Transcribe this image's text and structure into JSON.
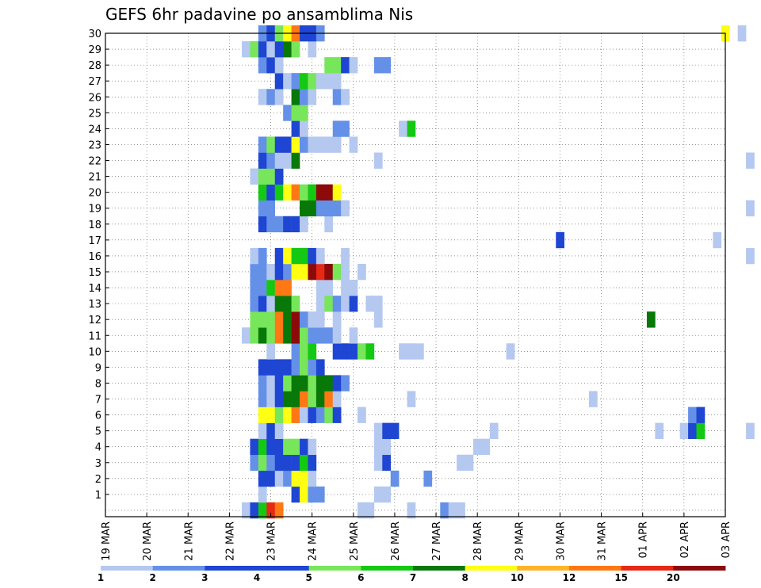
{
  "chart_data": {
    "type": "heatmap",
    "title": "GEFS 6hr padavine po ansamblima Nis",
    "y_ticks": [
      "1",
      "2",
      "3",
      "4",
      "5",
      "6",
      "7",
      "8",
      "9",
      "10",
      "11",
      "12",
      "13",
      "14",
      "15",
      "16",
      "17",
      "18",
      "19",
      "20",
      "21",
      "22",
      "23",
      "24",
      "25",
      "26",
      "27",
      "28",
      "29",
      "30"
    ],
    "x_ticks": [
      "19 MAR",
      "20 MAR",
      "21 MAR",
      "22 MAR",
      "23 MAR",
      "24 MAR",
      "25 MAR",
      "26 MAR",
      "27 MAR",
      "28 MAR",
      "29 MAR",
      "30 MAR",
      "31 MAR",
      "01 APR",
      "02 APR",
      "03 APR"
    ],
    "legend_labels": [
      "1",
      "2",
      "3",
      "4",
      "5",
      "6",
      "7",
      "8",
      "10",
      "12",
      "15",
      "20"
    ],
    "legend_colors": [
      "#b4c8f0",
      "#6490e8",
      "#1e46d2",
      "#1e46d2",
      "#78e65a",
      "#14c814",
      "#087808",
      "#ffff14",
      "#ffb428",
      "#ff7814",
      "#e62814",
      "#8c0a0a"
    ],
    "cells": [
      [
        0,
        3.4,
        1
      ],
      [
        0,
        3.6,
        3
      ],
      [
        0,
        3.8,
        6
      ],
      [
        0,
        4.0,
        11
      ],
      [
        0,
        4.2,
        10
      ],
      [
        0,
        6.2,
        1
      ],
      [
        0,
        6.4,
        1
      ],
      [
        0,
        7.4,
        1
      ],
      [
        0,
        8.2,
        2
      ],
      [
        0,
        8.4,
        1
      ],
      [
        0,
        8.6,
        1
      ],
      [
        1,
        3.8,
        1
      ],
      [
        1,
        4.6,
        3
      ],
      [
        1,
        4.8,
        8
      ],
      [
        1,
        5.0,
        2
      ],
      [
        1,
        5.2,
        2
      ],
      [
        1,
        6.6,
        1
      ],
      [
        1,
        6.8,
        1
      ],
      [
        2,
        3.8,
        3
      ],
      [
        2,
        4.0,
        3
      ],
      [
        2,
        4.2,
        1
      ],
      [
        2,
        4.4,
        2
      ],
      [
        2,
        4.6,
        8
      ],
      [
        2,
        4.8,
        8
      ],
      [
        2,
        5.0,
        1
      ],
      [
        2,
        7.0,
        2
      ],
      [
        2,
        7.8,
        2
      ],
      [
        3,
        3.6,
        2
      ],
      [
        3,
        3.8,
        5
      ],
      [
        3,
        4.0,
        2
      ],
      [
        3,
        4.2,
        3
      ],
      [
        3,
        4.4,
        3
      ],
      [
        3,
        4.6,
        3
      ],
      [
        3,
        4.8,
        6
      ],
      [
        3,
        5.0,
        3
      ],
      [
        3,
        6.6,
        1
      ],
      [
        3,
        6.8,
        3
      ],
      [
        3,
        8.6,
        1
      ],
      [
        3,
        8.8,
        1
      ],
      [
        4,
        3.6,
        3
      ],
      [
        4,
        3.8,
        6
      ],
      [
        4,
        4.0,
        3
      ],
      [
        4,
        4.2,
        3
      ],
      [
        4,
        4.4,
        5
      ],
      [
        4,
        4.6,
        5
      ],
      [
        4,
        4.8,
        3
      ],
      [
        4,
        5.0,
        1
      ],
      [
        4,
        6.6,
        1
      ],
      [
        4,
        6.8,
        1
      ],
      [
        4,
        9.0,
        1
      ],
      [
        4,
        9.2,
        1
      ],
      [
        5,
        3.8,
        1
      ],
      [
        5,
        4.0,
        3
      ],
      [
        5,
        4.2,
        1
      ],
      [
        5,
        6.6,
        1
      ],
      [
        5,
        6.8,
        3
      ],
      [
        5,
        7.0,
        3
      ],
      [
        5,
        9.4,
        1
      ],
      [
        5,
        13.4,
        1
      ],
      [
        5,
        14.0,
        1
      ],
      [
        5,
        14.2,
        3
      ],
      [
        5,
        14.4,
        6
      ],
      [
        5,
        15.6,
        1
      ],
      [
        5,
        16.6,
        8
      ],
      [
        6,
        3.8,
        8
      ],
      [
        6,
        4.0,
        8
      ],
      [
        6,
        4.2,
        5
      ],
      [
        6,
        4.4,
        8
      ],
      [
        6,
        4.6,
        10
      ],
      [
        6,
        4.8,
        1
      ],
      [
        6,
        5.0,
        3
      ],
      [
        6,
        5.2,
        2
      ],
      [
        6,
        5.4,
        5
      ],
      [
        6,
        5.6,
        3
      ],
      [
        6,
        6.2,
        1
      ],
      [
        6,
        14.2,
        2
      ],
      [
        6,
        14.4,
        3
      ],
      [
        7,
        3.8,
        2
      ],
      [
        7,
        4.0,
        1
      ],
      [
        7,
        4.2,
        3
      ],
      [
        7,
        4.4,
        7
      ],
      [
        7,
        4.6,
        7
      ],
      [
        7,
        4.8,
        10
      ],
      [
        7,
        5.0,
        5
      ],
      [
        7,
        5.2,
        7
      ],
      [
        7,
        5.4,
        10
      ],
      [
        7,
        5.6,
        1
      ],
      [
        7,
        7.4,
        1
      ],
      [
        7,
        11.8,
        1
      ],
      [
        7,
        18.4,
        6
      ],
      [
        8,
        3.8,
        2
      ],
      [
        8,
        4.0,
        1
      ],
      [
        8,
        4.2,
        3
      ],
      [
        8,
        4.4,
        5
      ],
      [
        8,
        4.6,
        7
      ],
      [
        8,
        4.8,
        7
      ],
      [
        8,
        5.0,
        5
      ],
      [
        8,
        5.2,
        7
      ],
      [
        8,
        5.4,
        7
      ],
      [
        8,
        5.6,
        3
      ],
      [
        8,
        5.8,
        2
      ],
      [
        8,
        18.0,
        5
      ],
      [
        8,
        18.2,
        7
      ],
      [
        8,
        18.6,
        3
      ],
      [
        8,
        19.6,
        1
      ],
      [
        9,
        3.8,
        3
      ],
      [
        9,
        4.0,
        3
      ],
      [
        9,
        4.2,
        3
      ],
      [
        9,
        4.4,
        3
      ],
      [
        9,
        4.6,
        2
      ],
      [
        9,
        4.8,
        5
      ],
      [
        9,
        5.0,
        2
      ],
      [
        9,
        5.2,
        3
      ],
      [
        10,
        4.0,
        1
      ],
      [
        10,
        4.6,
        2
      ],
      [
        10,
        4.8,
        5
      ],
      [
        10,
        5.0,
        6
      ],
      [
        10,
        5.6,
        3
      ],
      [
        10,
        5.8,
        3
      ],
      [
        10,
        6.0,
        3
      ],
      [
        10,
        6.2,
        5
      ],
      [
        10,
        6.4,
        6
      ],
      [
        10,
        7.2,
        1
      ],
      [
        10,
        7.4,
        1
      ],
      [
        10,
        7.6,
        1
      ],
      [
        10,
        9.8,
        1
      ],
      [
        11,
        3.4,
        1
      ],
      [
        11,
        3.6,
        5
      ],
      [
        11,
        3.8,
        7
      ],
      [
        11,
        4.0,
        5
      ],
      [
        11,
        4.2,
        10
      ],
      [
        11,
        4.4,
        7
      ],
      [
        11,
        4.6,
        13
      ],
      [
        11,
        4.8,
        5
      ],
      [
        11,
        5.0,
        2
      ],
      [
        11,
        5.2,
        2
      ],
      [
        11,
        5.4,
        2
      ],
      [
        11,
        5.6,
        1
      ],
      [
        11,
        6.0,
        1
      ],
      [
        11,
        17.6,
        1
      ],
      [
        11,
        19.4,
        3
      ],
      [
        12,
        3.6,
        5
      ],
      [
        12,
        3.8,
        5
      ],
      [
        12,
        4.0,
        5
      ],
      [
        12,
        4.2,
        10
      ],
      [
        12,
        4.4,
        7
      ],
      [
        12,
        4.6,
        13
      ],
      [
        12,
        4.8,
        2
      ],
      [
        12,
        5.0,
        1
      ],
      [
        12,
        5.2,
        1
      ],
      [
        12,
        5.6,
        1
      ],
      [
        12,
        6.6,
        1
      ],
      [
        12,
        13.2,
        7
      ],
      [
        13,
        3.6,
        2
      ],
      [
        13,
        3.8,
        3
      ],
      [
        13,
        4.0,
        1
      ],
      [
        13,
        4.2,
        7
      ],
      [
        13,
        4.4,
        7
      ],
      [
        13,
        4.6,
        5
      ],
      [
        13,
        5.2,
        1
      ],
      [
        13,
        5.4,
        5
      ],
      [
        13,
        5.6,
        2
      ],
      [
        13,
        5.8,
        1
      ],
      [
        13,
        6.0,
        3
      ],
      [
        13,
        6.4,
        1
      ],
      [
        13,
        6.6,
        1
      ],
      [
        13,
        19.4,
        1
      ],
      [
        13,
        19.6,
        2
      ],
      [
        14,
        3.6,
        2
      ],
      [
        14,
        3.8,
        2
      ],
      [
        14,
        4.0,
        6
      ],
      [
        14,
        4.2,
        10
      ],
      [
        14,
        4.4,
        10
      ],
      [
        14,
        5.2,
        1
      ],
      [
        14,
        5.4,
        1
      ],
      [
        14,
        5.8,
        1
      ],
      [
        14,
        6.0,
        1
      ],
      [
        15,
        3.6,
        2
      ],
      [
        15,
        3.8,
        2
      ],
      [
        15,
        4.0,
        1
      ],
      [
        15,
        4.2,
        3
      ],
      [
        15,
        4.4,
        2
      ],
      [
        15,
        4.6,
        8
      ],
      [
        15,
        4.8,
        8
      ],
      [
        15,
        5.0,
        13
      ],
      [
        15,
        5.2,
        11
      ],
      [
        15,
        5.4,
        15
      ],
      [
        15,
        5.6,
        5
      ],
      [
        15,
        5.8,
        1
      ],
      [
        15,
        6.2,
        1
      ],
      [
        15,
        16.6,
        3
      ],
      [
        15,
        16.8,
        1
      ],
      [
        15,
        17.8,
        1
      ],
      [
        16,
        3.6,
        1
      ],
      [
        16,
        3.8,
        2
      ],
      [
        16,
        4.2,
        3
      ],
      [
        16,
        4.4,
        8
      ],
      [
        16,
        4.6,
        6
      ],
      [
        16,
        4.8,
        6
      ],
      [
        16,
        5.0,
        3
      ],
      [
        16,
        5.2,
        1
      ],
      [
        16,
        5.8,
        1
      ],
      [
        16,
        15.6,
        1
      ],
      [
        17,
        11.0,
        3
      ],
      [
        17,
        14.8,
        1
      ],
      [
        18,
        3.8,
        3
      ],
      [
        18,
        4.0,
        2
      ],
      [
        18,
        4.2,
        2
      ],
      [
        18,
        4.4,
        3
      ],
      [
        18,
        4.6,
        3
      ],
      [
        18,
        4.8,
        1
      ],
      [
        18,
        5.4,
        1
      ],
      [
        19,
        3.8,
        2
      ],
      [
        19,
        4.0,
        2
      ],
      [
        19,
        4.8,
        7
      ],
      [
        19,
        5.0,
        7
      ],
      [
        19,
        5.2,
        2
      ],
      [
        19,
        5.4,
        2
      ],
      [
        19,
        5.6,
        2
      ],
      [
        19,
        5.8,
        1
      ],
      [
        19,
        15.6,
        1
      ],
      [
        20,
        3.8,
        6
      ],
      [
        20,
        4.0,
        3
      ],
      [
        20,
        4.2,
        6
      ],
      [
        20,
        4.4,
        8
      ],
      [
        20,
        4.6,
        10
      ],
      [
        20,
        4.8,
        5
      ],
      [
        20,
        5.0,
        6
      ],
      [
        20,
        5.2,
        13
      ],
      [
        20,
        5.4,
        12
      ],
      [
        20,
        5.6,
        8
      ],
      [
        21,
        3.6,
        1
      ],
      [
        21,
        3.8,
        5
      ],
      [
        21,
        4.0,
        5
      ],
      [
        21,
        4.2,
        3
      ],
      [
        22,
        3.8,
        3
      ],
      [
        22,
        4.0,
        2
      ],
      [
        22,
        4.2,
        1
      ],
      [
        22,
        4.4,
        1
      ],
      [
        22,
        4.6,
        7
      ],
      [
        22,
        6.6,
        1
      ],
      [
        22,
        15.6,
        1
      ],
      [
        22,
        18.8,
        1
      ],
      [
        22,
        19.6,
        6
      ],
      [
        22,
        19.8,
        3
      ],
      [
        23,
        3.8,
        2
      ],
      [
        23,
        4.0,
        5
      ],
      [
        23,
        4.2,
        3
      ],
      [
        23,
        4.4,
        3
      ],
      [
        23,
        4.6,
        8
      ],
      [
        23,
        4.8,
        2
      ],
      [
        23,
        5.0,
        1
      ],
      [
        23,
        5.2,
        1
      ],
      [
        23,
        5.4,
        1
      ],
      [
        23,
        5.6,
        1
      ],
      [
        23,
        6.0,
        1
      ],
      [
        23,
        16.0,
        1
      ],
      [
        23,
        16.2,
        3
      ],
      [
        23,
        16.4,
        1
      ],
      [
        23,
        16.6,
        2
      ],
      [
        23,
        16.8,
        2
      ],
      [
        23,
        17.2,
        1
      ],
      [
        23,
        17.4,
        6
      ],
      [
        23,
        17.6,
        2
      ],
      [
        23,
        18.0,
        2
      ],
      [
        23,
        19.6,
        5
      ],
      [
        23,
        19.8,
        1
      ],
      [
        24,
        4.6,
        3
      ],
      [
        24,
        4.8,
        1
      ],
      [
        24,
        5.6,
        2
      ],
      [
        24,
        5.8,
        2
      ],
      [
        24,
        7.2,
        1
      ],
      [
        24,
        7.4,
        6
      ],
      [
        24,
        19.4,
        1
      ],
      [
        25,
        4.4,
        2
      ],
      [
        25,
        4.6,
        5
      ],
      [
        25,
        4.8,
        5
      ],
      [
        25,
        20.0,
        2
      ],
      [
        26,
        3.8,
        1
      ],
      [
        26,
        4.0,
        2
      ],
      [
        26,
        4.2,
        1
      ],
      [
        26,
        4.6,
        7
      ],
      [
        26,
        4.8,
        2
      ],
      [
        26,
        5.0,
        1
      ],
      [
        26,
        5.6,
        2
      ],
      [
        26,
        5.8,
        1
      ],
      [
        27,
        4.2,
        3
      ],
      [
        27,
        4.4,
        1
      ],
      [
        27,
        4.6,
        2
      ],
      [
        27,
        4.8,
        6
      ],
      [
        27,
        5.0,
        5
      ],
      [
        27,
        5.2,
        1
      ],
      [
        27,
        5.4,
        1
      ],
      [
        27,
        5.6,
        1
      ],
      [
        28,
        3.8,
        2
      ],
      [
        28,
        4.0,
        3
      ],
      [
        28,
        4.2,
        1
      ],
      [
        28,
        5.4,
        5
      ],
      [
        28,
        5.6,
        5
      ],
      [
        28,
        5.8,
        3
      ],
      [
        28,
        6.0,
        1
      ],
      [
        28,
        6.6,
        2
      ],
      [
        28,
        6.8,
        2
      ],
      [
        29,
        3.4,
        1
      ],
      [
        29,
        3.6,
        5
      ],
      [
        29,
        3.8,
        3
      ],
      [
        29,
        4.0,
        1
      ],
      [
        29,
        4.2,
        3
      ],
      [
        29,
        4.4,
        7
      ],
      [
        29,
        4.6,
        5
      ],
      [
        29,
        5.0,
        1
      ],
      [
        30,
        3.8,
        2
      ],
      [
        30,
        4.0,
        3
      ],
      [
        30,
        4.2,
        5
      ],
      [
        30,
        4.4,
        8
      ],
      [
        30,
        4.6,
        10
      ],
      [
        30,
        4.8,
        3
      ],
      [
        30,
        5.0,
        3
      ],
      [
        30,
        5.2,
        2
      ],
      [
        30,
        15.0,
        8
      ],
      [
        30,
        15.4,
        1
      ],
      [
        30,
        16.6,
        13
      ]
    ],
    "y_range": [
      0,
      30
    ],
    "grid": true
  }
}
